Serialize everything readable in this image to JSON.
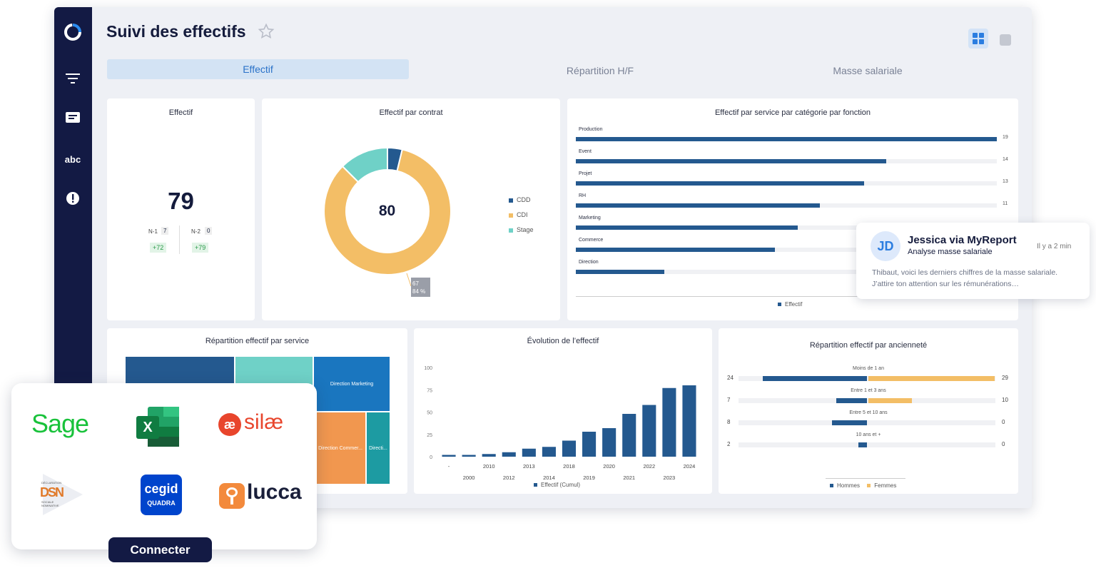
{
  "page": {
    "title": "Suivi des effectifs"
  },
  "tabs": [
    {
      "label": "Effectif",
      "active": true
    },
    {
      "label": "Répartition H/F",
      "active": false
    },
    {
      "label": "Masse salariale",
      "active": false
    }
  ],
  "sidebar": {
    "abc_label": "abc"
  },
  "kpi": {
    "title": "Effectif",
    "value": "79",
    "n1_label": "N-1",
    "n1_value": "7",
    "n1_delta": "+72",
    "n2_label": "N-2",
    "n2_value": "0",
    "n2_delta": "+79"
  },
  "donut": {
    "title": "Effectif par contrat",
    "total": "80",
    "tooltip_value": "67",
    "tooltip_pct": "84 %",
    "legend": [
      {
        "name": "CDD",
        "color": "#24598f"
      },
      {
        "name": "CDI",
        "color": "#f3be66"
      },
      {
        "name": "Stage",
        "color": "#6fd1c7"
      }
    ]
  },
  "service_chart": {
    "title": "Effectif par service par catégorie par fonction",
    "legend": "Effectif",
    "max": 19,
    "rows": [
      {
        "label": "Production",
        "value": 19,
        "value_label": "19"
      },
      {
        "label": "Event",
        "value": 14,
        "value_label": "14"
      },
      {
        "label": "Projet",
        "value": 13,
        "value_label": "13"
      },
      {
        "label": "RH",
        "value": 11,
        "value_label": "11"
      },
      {
        "label": "Marketing",
        "value": 10,
        "value_label": ""
      },
      {
        "label": "Commerce",
        "value": 9,
        "value_label": ""
      },
      {
        "label": "Direction",
        "value": 4,
        "value_label": ""
      }
    ]
  },
  "treemap": {
    "title": "Répartition effectif par service",
    "labels": {
      "direction_marketing": "Direction Marketing",
      "direction_commerce": "Direction Commer...",
      "direction_other": "Directi..."
    }
  },
  "evolution": {
    "title": "Évolution de l’effectif",
    "legend": "Effectif (Cumul)",
    "y_ticks": [
      "100",
      "75",
      "50",
      "25",
      "0"
    ]
  },
  "anciennete": {
    "title": "Répartition effectif par ancienneté",
    "legend_h": "Hommes",
    "legend_f": "Femmes",
    "rows": [
      {
        "label": "Moins de 1 an",
        "h": 24,
        "f": 29,
        "h_label": "24",
        "f_label": "29"
      },
      {
        "label": "Entre 1 et 3 ans",
        "h": 7,
        "f": 10,
        "h_label": "7",
        "f_label": "10"
      },
      {
        "label": "Entre 5 et 10 ans",
        "h": 8,
        "f": 0,
        "h_label": "8",
        "f_label": "0"
      },
      {
        "label": "10 ans et +",
        "h": 2,
        "f": 0,
        "h_label": "2",
        "f_label": "0"
      }
    ]
  },
  "notification": {
    "initials": "JD",
    "sender": "Jessica via MyReport",
    "subject": "Analyse masse salariale",
    "time": "Il y a 2 min",
    "line1": "Thibaut, voici les derniers chiffres de la masse salariale.",
    "line2": "J’attire ton attention sur les rémunérations…"
  },
  "integrations": {
    "sage": "Sage",
    "excel_letter": "X",
    "silae": "silæ",
    "dsn_top": "DÉCLARATION",
    "dsn_mid": "DSN",
    "dsn_bottom1": "SOCIALE",
    "dsn_bottom2": "NOMINATIVE",
    "cegid": "cegid",
    "cegid_sub": "QUADRA",
    "lucca": "lucca",
    "connect_button": "Connecter"
  },
  "chart_data": [
    {
      "type": "bar",
      "title": "Effectif par service par catégorie par fonction",
      "categories": [
        "Production",
        "Event",
        "Projet",
        "RH",
        "Marketing",
        "Commerce",
        "Direction"
      ],
      "series": [
        {
          "name": "Effectif",
          "values": [
            19,
            14,
            13,
            11,
            10,
            9,
            4
          ]
        }
      ]
    },
    {
      "type": "pie",
      "title": "Effectif par contrat",
      "categories": [
        "CDD",
        "CDI",
        "Stage"
      ],
      "values": [
        3,
        67,
        10
      ]
    },
    {
      "type": "bar",
      "title": "Évolution de l’effectif",
      "categories": [
        "-",
        "2000",
        "2010",
        "2012",
        "2013",
        "2014",
        "2018",
        "2019",
        "2020",
        "2021",
        "2022",
        "2023",
        "2024"
      ],
      "series": [
        {
          "name": "Effectif (Cumul)",
          "values": [
            2,
            2,
            3,
            5,
            9,
            11,
            18,
            28,
            32,
            48,
            58,
            77,
            80
          ]
        }
      ],
      "ylim": [
        0,
        100
      ]
    },
    {
      "type": "bar",
      "title": "Répartition effectif par ancienneté",
      "categories": [
        "Moins de 1 an",
        "Entre 1 et 3 ans",
        "Entre 5 et 10 ans",
        "10 ans et +"
      ],
      "series": [
        {
          "name": "Hommes",
          "values": [
            24,
            7,
            8,
            2
          ]
        },
        {
          "name": "Femmes",
          "values": [
            29,
            10,
            0,
            0
          ]
        }
      ]
    }
  ]
}
